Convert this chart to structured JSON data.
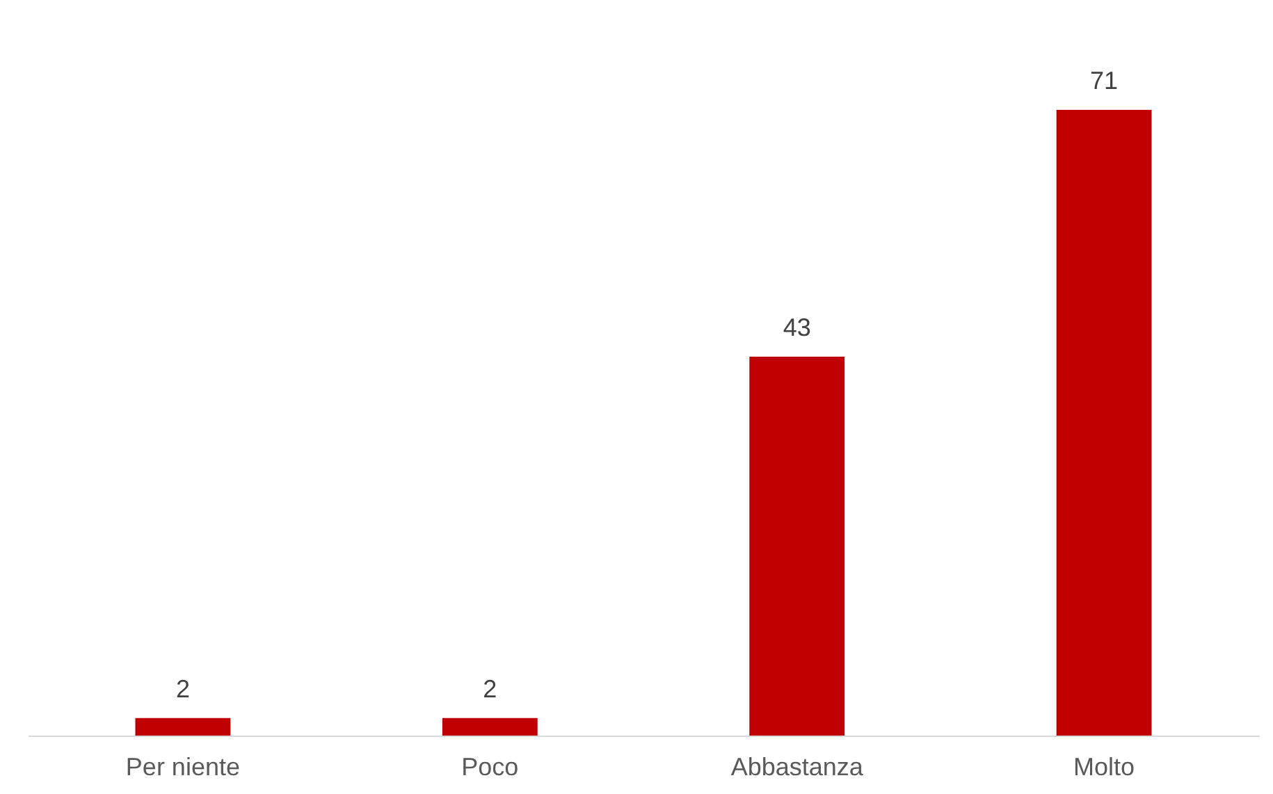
{
  "chart_data": {
    "type": "bar",
    "categories": [
      "Per niente",
      "Poco",
      "Abbastanza",
      "Molto"
    ],
    "values": [
      2,
      2,
      43,
      71
    ],
    "color": "#c00000",
    "data_labels": true
  }
}
